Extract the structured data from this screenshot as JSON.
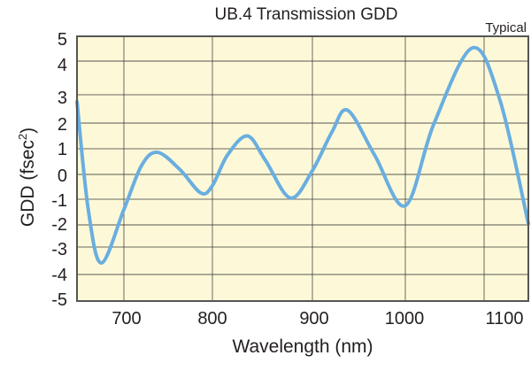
{
  "chart_data": {
    "type": "line",
    "title": "UB.4 Transmission GDD",
    "annotation": "Typical",
    "xlabel": "Wavelength (nm)",
    "ylabel_main": "GDD (fsec",
    "ylabel_sup": "2",
    "ylabel_close": ")",
    "xlim": [
      650,
      1150
    ],
    "ylim": [
      -5,
      5
    ],
    "xticks": [
      "700",
      "800",
      "900",
      "1000",
      "1100"
    ],
    "yticks": [
      "5",
      "4",
      "3",
      "2",
      "1",
      "0",
      "-1",
      "-2",
      "-3",
      "-4",
      "-5"
    ],
    "grid": true,
    "series": [
      {
        "name": "GDD",
        "color": "#6aaee0",
        "x": [
          650,
          662,
          676,
          700,
          720,
          738,
          763,
          787,
          800,
          815,
          835,
          853,
          878,
          900,
          921,
          938,
          967,
          1000,
          1036,
          1085,
          1118,
          1150
        ],
        "y": [
          2.75,
          -1.4,
          -3.58,
          -1.4,
          0.35,
          0.86,
          0.2,
          -0.75,
          -0.45,
          0.75,
          1.5,
          0.55,
          -0.95,
          0.15,
          1.65,
          2.45,
          0.75,
          -1.25,
          1.95,
          4.55,
          2.8,
          -1.95
        ]
      }
    ],
    "colors": {
      "plot_bg": "#fdf9d8",
      "grid": "#3a3a3a"
    }
  }
}
